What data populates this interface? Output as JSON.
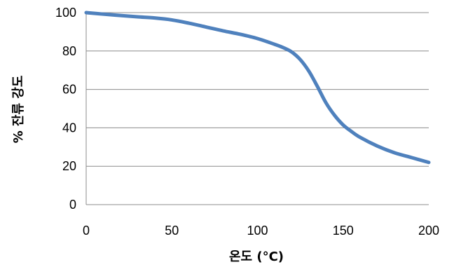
{
  "chart_data": {
    "type": "line",
    "title": "",
    "xlabel": "온도 (°C)",
    "ylabel": "% 잔류 강도",
    "xlim": [
      0,
      200
    ],
    "ylim": [
      0,
      100
    ],
    "xticks": [
      0,
      50,
      100,
      150,
      200
    ],
    "yticks": [
      0,
      20,
      40,
      60,
      80,
      100
    ],
    "grid": "horizontal",
    "legend": "none",
    "series": [
      {
        "color": "#4f81bd",
        "x": [
          0,
          10,
          20,
          30,
          40,
          50,
          60,
          70,
          80,
          90,
          100,
          110,
          115,
          120,
          125,
          130,
          135,
          140,
          145,
          150,
          155,
          160,
          170,
          180,
          190,
          200
        ],
        "y": [
          100,
          99.2,
          98.5,
          97.8,
          97.2,
          96.2,
          94.5,
          92.5,
          90.5,
          88.7,
          86.5,
          83.5,
          81.8,
          79.5,
          75.5,
          69.5,
          61.5,
          53,
          46.5,
          41.5,
          38,
          35,
          30.5,
          27,
          24.5,
          22
        ]
      }
    ]
  }
}
